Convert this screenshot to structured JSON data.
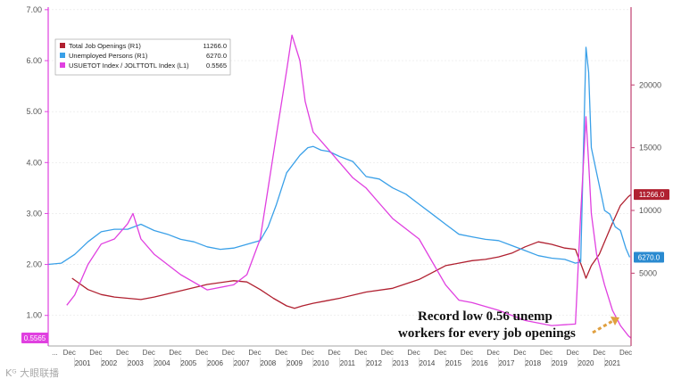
{
  "chart_data": {
    "type": "line",
    "x_range": [
      2000.0,
      2022.0
    ],
    "left_axis": {
      "range": [
        0.4,
        7.05
      ],
      "ticks": [
        "1.00",
        "2.00",
        "3.00",
        "4.00",
        "5.00",
        "6.00",
        "7.00"
      ],
      "tick_values": [
        1,
        2,
        3,
        4,
        5,
        6,
        7
      ],
      "color": "#e040e0"
    },
    "right_axis": {
      "range": [
        -800,
        26200
      ],
      "ticks": [
        "5000",
        "10000",
        "15000",
        "20000"
      ],
      "tick_values": [
        5000,
        10000,
        15000,
        20000
      ],
      "color": "#c04070"
    },
    "year_labels": [
      "2001",
      "2002",
      "2003",
      "2004",
      "2005",
      "2006",
      "2007",
      "2008",
      "2009",
      "2010",
      "2011",
      "2012",
      "2013",
      "2014",
      "2015",
      "2016",
      "2017",
      "2018",
      "2019",
      "2020",
      "2021"
    ],
    "x_tick_labels": [
      "...",
      "Dec",
      "Dec",
      "Dec",
      "Dec",
      "Dec",
      "Dec",
      "Dec",
      "Dec",
      "Dec",
      "Dec",
      "Dec",
      "Dec",
      "Dec",
      "Dec",
      "Dec",
      "Dec",
      "Dec",
      "Dec",
      "Dec",
      "Dec",
      "Dec",
      "Dec"
    ],
    "legend": [
      {
        "name": "Total Job Openings (R1)",
        "value": "11266.0",
        "color": "#b02030"
      },
      {
        "name": "Unemployed Persons (R1)",
        "value": "6270.0",
        "color": "#3aa0e8"
      },
      {
        "name": "USUETOT Index / JOLTTOTL Index (L1)",
        "value": "0.5565",
        "color": "#e040e0"
      }
    ],
    "value_tags": [
      {
        "series": "Total Job Openings (R1)",
        "text": "11266.0",
        "color": "#b02030"
      },
      {
        "series": "Unemployed Persons (R1)",
        "text": "6270.0",
        "color": "#2a8ad0"
      },
      {
        "series": "USUETOT Index / JOLTTOTL Index (L1)",
        "text": "0.5565",
        "color": "#e040e0"
      }
    ],
    "annotation": "Record low 0.56 unemp workers for every job openings",
    "series": [
      {
        "name": "Total Job Openings (R1)",
        "axis": "right",
        "color": "#b02030",
        "x": [
          2000.9,
          2001.5,
          2002.0,
          2002.5,
          2003.0,
          2003.5,
          2004.0,
          2005.0,
          2006.0,
          2007.0,
          2007.5,
          2008.0,
          2008.5,
          2009.0,
          2009.3,
          2009.6,
          2010.0,
          2010.5,
          2011.0,
          2012.0,
          2013.0,
          2014.0,
          2015.0,
          2016.0,
          2016.5,
          2017.0,
          2017.5,
          2018.0,
          2018.5,
          2019.0,
          2019.5,
          2019.9,
          2020.2,
          2020.3,
          2020.5,
          2020.8,
          2021.0,
          2021.3,
          2021.6,
          2021.9,
          2022.0
        ],
        "y": [
          4600,
          3700,
          3300,
          3100,
          3000,
          2900,
          3100,
          3600,
          4100,
          4400,
          4300,
          3700,
          3000,
          2400,
          2200,
          2400,
          2600,
          2800,
          3000,
          3500,
          3800,
          4500,
          5600,
          6000,
          6100,
          6300,
          6600,
          7100,
          7500,
          7300,
          7000,
          6900,
          5200,
          4600,
          5600,
          6500,
          7500,
          9000,
          10400,
          11100,
          11266
        ]
      },
      {
        "name": "Unemployed Persons (R1)",
        "axis": "right",
        "color": "#3aa0e8",
        "x": [
          2000.0,
          2000.5,
          2001.0,
          2001.5,
          2002.0,
          2002.5,
          2003.0,
          2003.5,
          2004.0,
          2004.5,
          2005.0,
          2005.5,
          2006.0,
          2006.5,
          2007.0,
          2007.5,
          2008.0,
          2008.3,
          2008.6,
          2009.0,
          2009.5,
          2009.8,
          2010.0,
          2010.3,
          2010.6,
          2011.0,
          2011.5,
          2012.0,
          2012.5,
          2013.0,
          2013.5,
          2014.0,
          2014.5,
          2015.0,
          2015.5,
          2016.0,
          2016.5,
          2017.0,
          2017.5,
          2018.0,
          2018.5,
          2019.0,
          2019.5,
          2019.9,
          2020.1,
          2020.3,
          2020.4,
          2020.5,
          2020.7,
          2020.9,
          2021.0,
          2021.2,
          2021.4,
          2021.6,
          2021.8,
          2021.95
        ],
        "y": [
          5700,
          5800,
          6500,
          7500,
          8300,
          8500,
          8500,
          8900,
          8400,
          8100,
          7700,
          7500,
          7100,
          6900,
          7000,
          7300,
          7600,
          8700,
          10400,
          13000,
          14400,
          15000,
          15100,
          14800,
          14700,
          14300,
          13900,
          12700,
          12500,
          11800,
          11300,
          10500,
          9700,
          8900,
          8100,
          7900,
          7700,
          7600,
          7200,
          6800,
          6400,
          6200,
          6100,
          5800,
          5900,
          23000,
          21000,
          15000,
          13000,
          11000,
          10000,
          9700,
          8700,
          8400,
          7000,
          6270
        ]
      },
      {
        "name": "USUETOT Index / JOLTTOTL Index (L1)",
        "axis": "left",
        "color": "#e040e0",
        "x": [
          2000.7,
          2001.0,
          2001.5,
          2002.0,
          2002.5,
          2003.0,
          2003.2,
          2003.5,
          2004.0,
          2005.0,
          2006.0,
          2007.0,
          2007.5,
          2008.0,
          2008.3,
          2008.6,
          2009.0,
          2009.2,
          2009.5,
          2009.7,
          2010.0,
          2010.5,
          2011.0,
          2011.5,
          2012.0,
          2012.5,
          2013.0,
          2014.0,
          2015.0,
          2015.5,
          2016.0,
          2017.0,
          2018.0,
          2019.0,
          2019.9,
          2020.1,
          2020.3,
          2020.4,
          2020.5,
          2020.7,
          2021.0,
          2021.3,
          2021.6,
          2021.9,
          2022.0
        ],
        "y": [
          1.2,
          1.4,
          2.0,
          2.4,
          2.5,
          2.8,
          3.0,
          2.5,
          2.2,
          1.8,
          1.5,
          1.6,
          1.8,
          2.5,
          3.5,
          4.5,
          5.8,
          6.5,
          6.0,
          5.2,
          4.6,
          4.3,
          4.0,
          3.7,
          3.5,
          3.2,
          2.9,
          2.5,
          1.6,
          1.3,
          1.25,
          1.1,
          0.9,
          0.8,
          0.83,
          3.0,
          4.9,
          4.0,
          3.0,
          2.2,
          1.6,
          1.1,
          0.8,
          0.6,
          0.5565
        ]
      }
    ]
  },
  "watermark": "Kᴳ 大眼联播"
}
